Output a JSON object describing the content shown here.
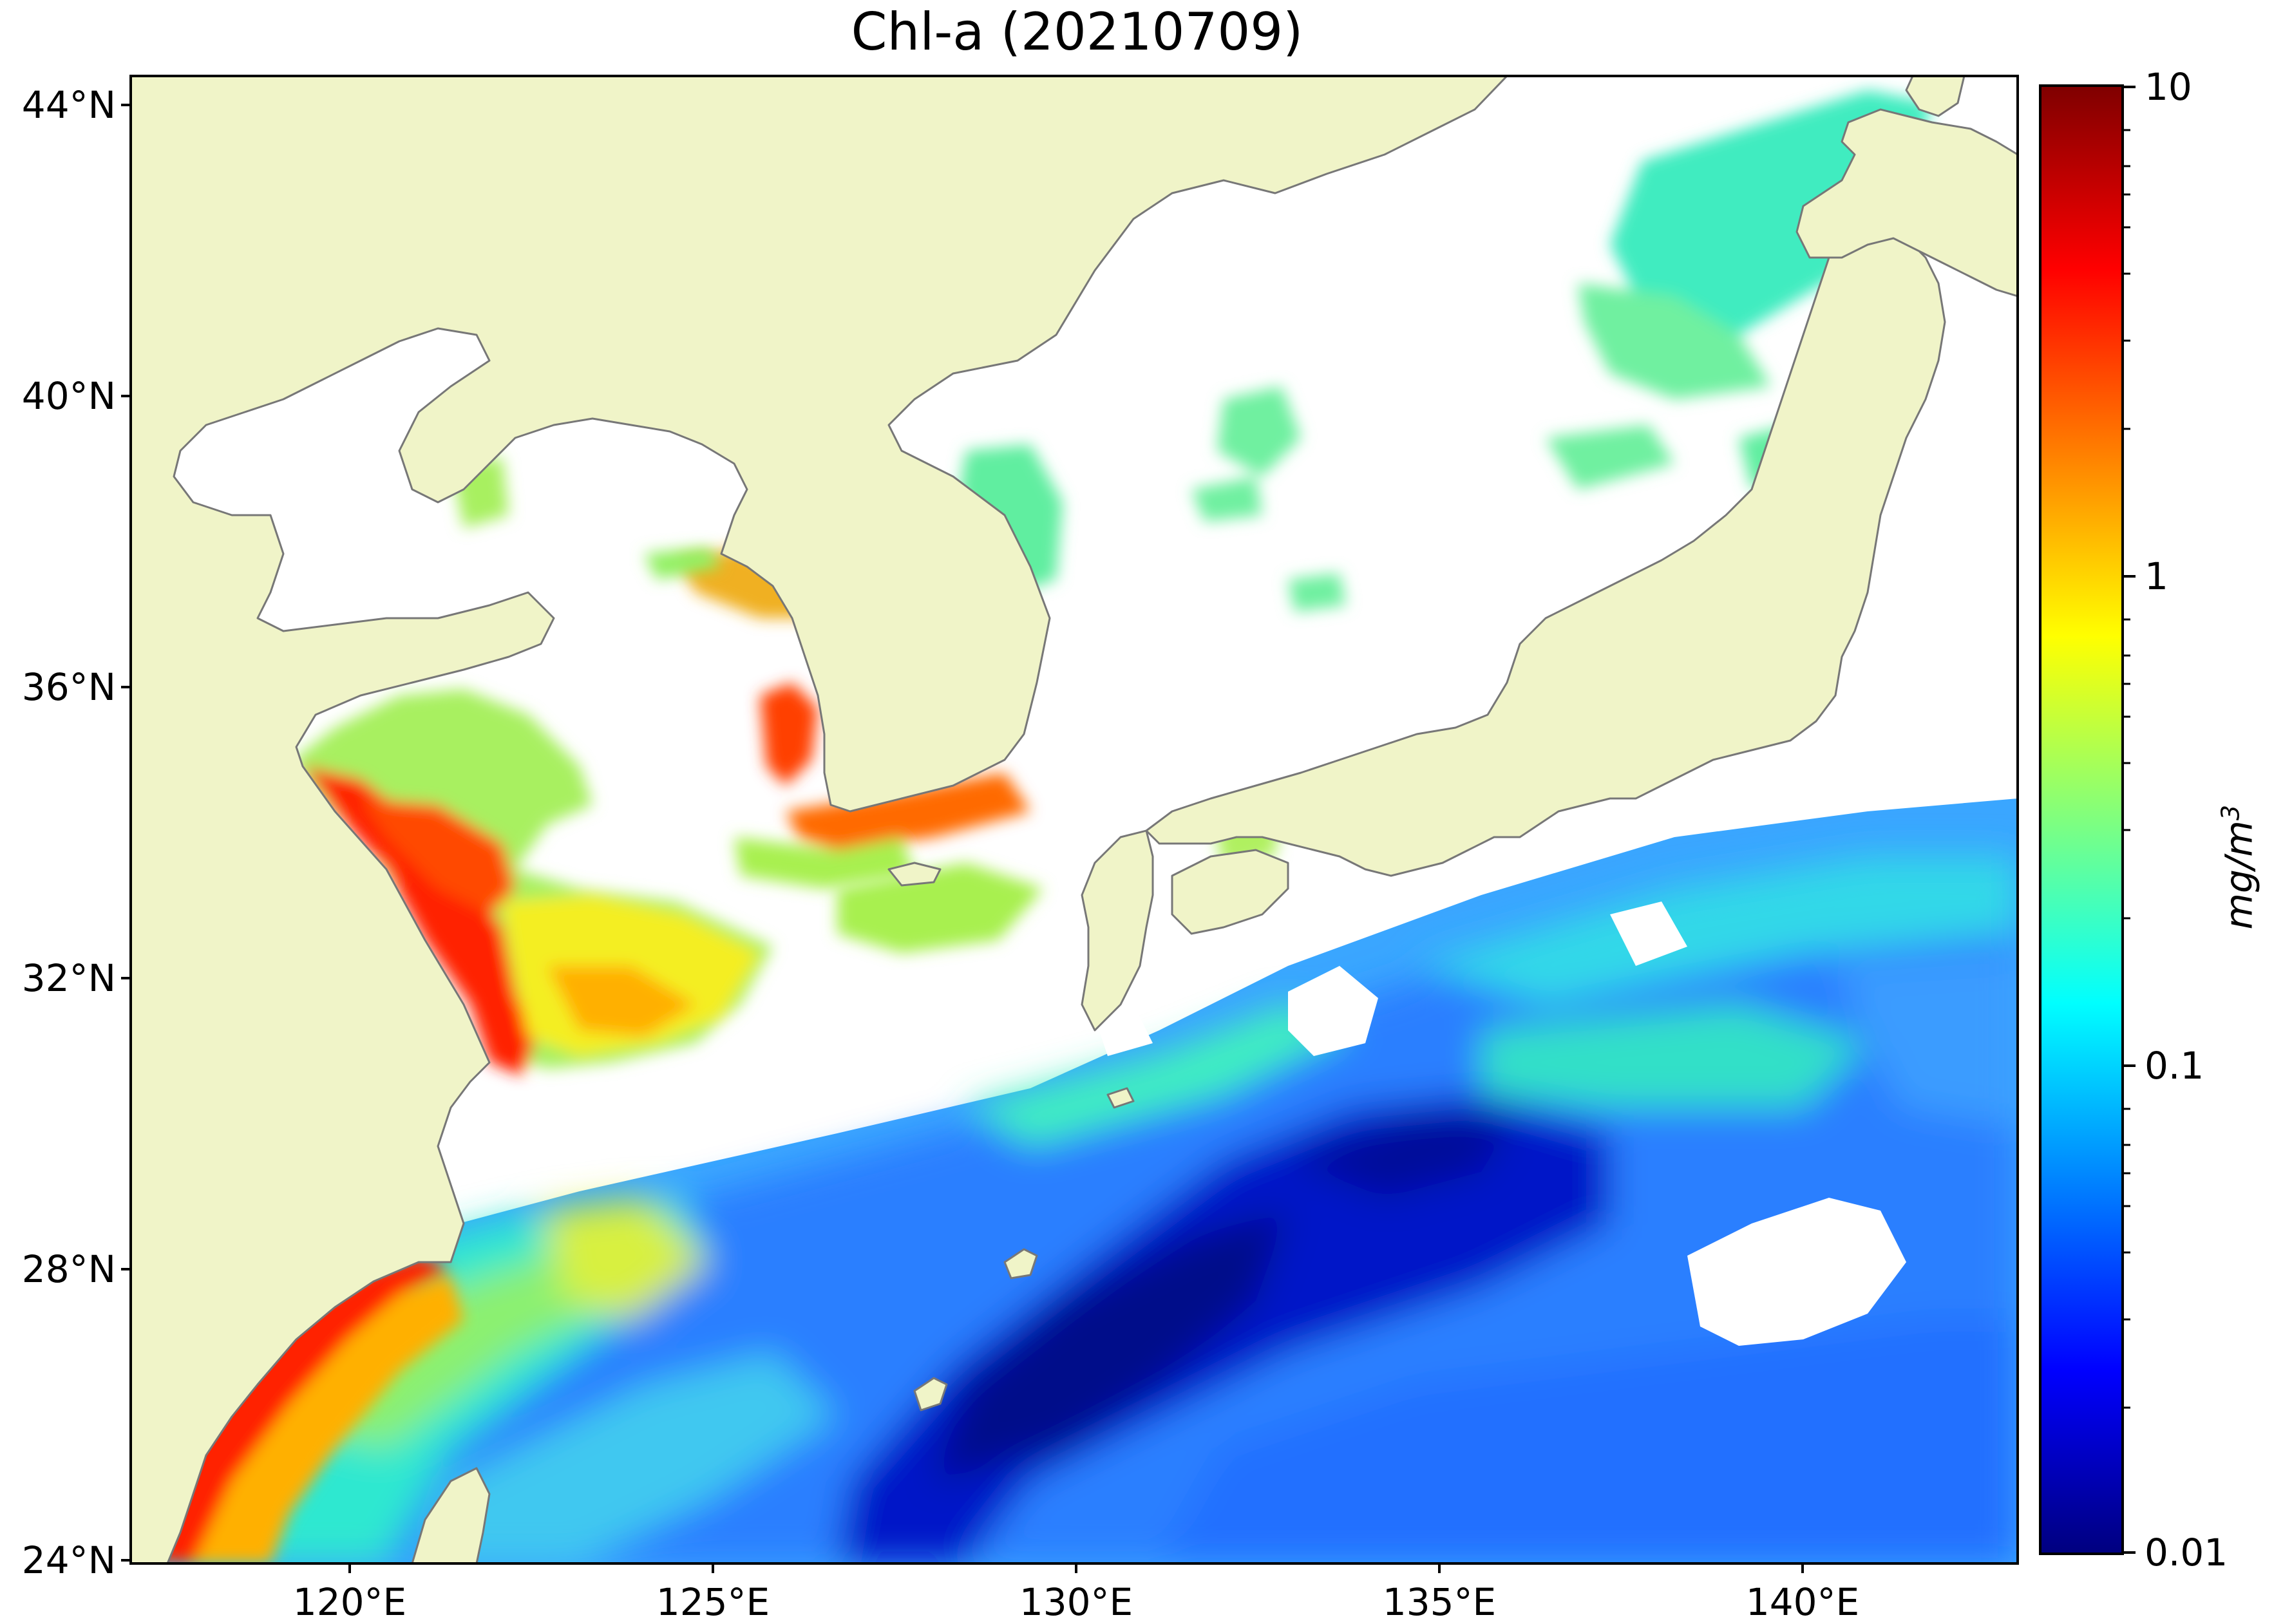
{
  "title": "Chl-a (20210709)",
  "lat_labels": [
    "44°N",
    "40°N",
    "36°N",
    "32°N",
    "28°N",
    "24°N"
  ],
  "lon_labels": [
    "120°E",
    "125°E",
    "130°E",
    "135°E",
    "140°E"
  ],
  "colorbar": {
    "ticks": [
      "10",
      "1",
      "0.1",
      "0.01"
    ],
    "label_main": "mg/m",
    "label_exp": "3",
    "scale": "log",
    "range": [
      0.01,
      10
    ],
    "colormap": "jet",
    "colors": [
      "#00007f",
      "#0000ff",
      "#007fff",
      "#00ffff",
      "#7fff7f",
      "#ffff00",
      "#ff7f00",
      "#ff0000",
      "#7f0000"
    ]
  },
  "map": {
    "extent_lon": [
      117,
      143
    ],
    "extent_lat": [
      24,
      44.5
    ],
    "land_color": "#f0f4c8",
    "coast_color": "#777777",
    "cloud_color": "#ffffff"
  }
}
